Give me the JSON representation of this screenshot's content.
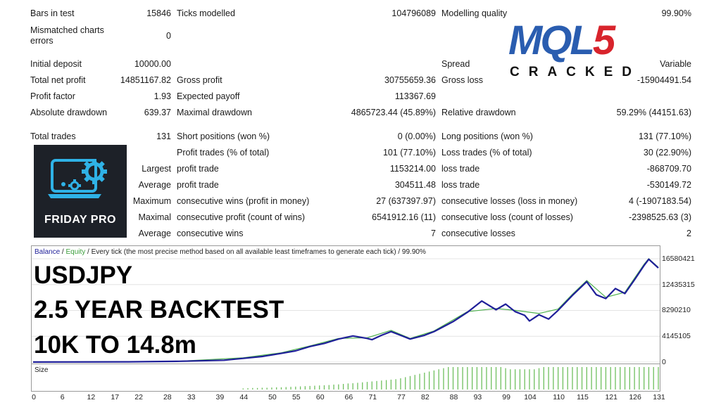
{
  "stats": {
    "bars_label": "Bars in test",
    "bars_value": "15846",
    "ticks_label": "Ticks modelled",
    "ticks_value": "104796089",
    "quality_label": "Modelling quality",
    "quality_value": "99.90%",
    "mismatch_label_1": "Mismatched charts",
    "mismatch_label_2": "errors",
    "mismatch_value": "0",
    "deposit_label": "Initial deposit",
    "deposit_value": "10000.00",
    "spread_label": "Spread",
    "spread_value": "Variable",
    "net_label": "Total net profit",
    "net_value": "14851167.82",
    "gross_profit_label": "Gross profit",
    "gross_profit_value": "30755659.36",
    "gross_loss_label": "Gross loss",
    "gross_loss_value": "-15904491.54",
    "pf_label": "Profit factor",
    "pf_value": "1.93",
    "ep_label": "Expected payoff",
    "ep_value": "113367.69",
    "abs_dd_label": "Absolute drawdown",
    "abs_dd_value": "639.37",
    "max_dd_label": "Maximal drawdown",
    "max_dd_value": "4865723.44 (45.89%)",
    "rel_dd_label": "Relative drawdown",
    "rel_dd_value": "59.29% (44151.63)",
    "trades_label": "Total trades",
    "trades_value": "131",
    "short_label": "Short positions (won %)",
    "short_value": "0 (0.00%)",
    "long_label": "Long positions (won %)",
    "long_value": "131 (77.10%)",
    "profit_trades_label": "Profit trades (% of total)",
    "profit_trades_value": "101 (77.10%)",
    "loss_trades_label": "Loss trades (% of total)",
    "loss_trades_value": "30 (22.90%)",
    "largest_prefix": "Largest",
    "largest_profit_label": "profit trade",
    "largest_profit_value": "1153214.00",
    "largest_loss_label": "loss trade",
    "largest_loss_value": "-868709.70",
    "average_prefix": "Average",
    "average_profit_label": "profit trade",
    "average_profit_value": "304511.48",
    "average_loss_label": "loss trade",
    "average_loss_value": "-530149.72",
    "maximum_prefix": "Maximum",
    "max_cons_wins_label": "consecutive wins (profit in money)",
    "max_cons_wins_value": "27 (637397.97)",
    "max_cons_losses_label": "consecutive losses (loss in money)",
    "max_cons_losses_value": "4 (-1907183.54)",
    "maximal_prefix": "Maximal",
    "maximal_profit_label": "consecutive profit (count of wins)",
    "maximal_profit_value": "6541912.16 (11)",
    "maximal_loss_label": "consecutive loss (count of losses)",
    "maximal_loss_value": "-2398525.63 (3)",
    "avg2_prefix": "Average",
    "avg_cons_wins_label": "consecutive wins",
    "avg_cons_wins_value": "7",
    "avg_cons_losses_label": "consecutive losses",
    "avg_cons_losses_value": "2"
  },
  "logos": {
    "mql_letters": "MQL",
    "mql_five": "5",
    "cracked": "CRACKED",
    "friday": "FRIDAY PRO"
  },
  "overlay": {
    "line1": "USDJPY",
    "line2": "2.5 YEAR BACKTEST",
    "line3": "10K TO 14.8m"
  },
  "chart_header": {
    "balance": "Balance",
    "sep": " / ",
    "equity": "Equity",
    "rest": " / Every tick (the most precise method based on all available least timeframes to generate each tick) / 99.90%"
  },
  "size_label": "Size",
  "chart_data": {
    "type": "line",
    "y_ticks": [
      "16580421",
      "12435315",
      "8290210",
      "4145105",
      "0"
    ],
    "y_range": [
      0,
      16580421
    ],
    "x_ticks": [
      "0",
      "6",
      "12",
      "17",
      "22",
      "28",
      "33",
      "39",
      "44",
      "50",
      "55",
      "60",
      "66",
      "71",
      "77",
      "82",
      "88",
      "93",
      "99",
      "104",
      "110",
      "115",
      "121",
      "126",
      "131"
    ],
    "x_range": [
      0,
      131
    ],
    "series": [
      {
        "name": "Balance",
        "color": "#1f1f99",
        "x": [
          0,
          20,
          30,
          40,
          44,
          48,
          52,
          55,
          58,
          61,
          64,
          67,
          70,
          71,
          73,
          75,
          77,
          79,
          82,
          84,
          88,
          91,
          94,
          97,
          99,
          101,
          103,
          104,
          106,
          108,
          110,
          113,
          116,
          118,
          120,
          122,
          124,
          126,
          128,
          129,
          131
        ],
        "values": [
          10000,
          50000,
          120000,
          300000,
          600000,
          900000,
          1400000,
          1800000,
          2500000,
          3000000,
          3700000,
          4200000,
          3800000,
          3600000,
          4300000,
          4900000,
          4300000,
          3700000,
          4300000,
          4900000,
          6500000,
          8000000,
          9800000,
          8400000,
          9300000,
          8100000,
          7500000,
          6600000,
          7600000,
          6900000,
          8300000,
          10700000,
          12900000,
          10800000,
          10200000,
          11800000,
          11000000,
          13200000,
          15500000,
          16500000,
          15100000
        ]
      },
      {
        "name": "Equity",
        "color": "#4cb04c",
        "x": [
          0,
          30,
          44,
          52,
          58,
          64,
          70,
          75,
          79,
          84,
          91,
          97,
          101,
          106,
          110,
          113,
          116,
          120,
          124,
          128,
          129,
          131
        ],
        "values": [
          10000,
          120000,
          700000,
          1500000,
          2600000,
          3800000,
          3900000,
          5100000,
          3800000,
          5000000,
          8100000,
          8600000,
          8300000,
          7800000,
          8500000,
          10900000,
          13100000,
          10400000,
          11200000,
          15700000,
          16600000,
          15200000
        ]
      }
    ],
    "size_bars": {
      "x_start": 44,
      "x_end": 131,
      "values": [
        0.05,
        0.06,
        0.07,
        0.07,
        0.08,
        0.08,
        0.09,
        0.1,
        0.1,
        0.11,
        0.12,
        0.13,
        0.14,
        0.15,
        0.16,
        0.17,
        0.18,
        0.19,
        0.2,
        0.22,
        0.23,
        0.25,
        0.27,
        0.28,
        0.3,
        0.32,
        0.34,
        0.36,
        0.38,
        0.4,
        0.42,
        0.44,
        0.46,
        0.5,
        0.55,
        0.6,
        0.65,
        0.7,
        0.75,
        0.8,
        0.85,
        0.9,
        0.95,
        1,
        1,
        1,
        1,
        1,
        1,
        1,
        1,
        1,
        1,
        1,
        1,
        0.95,
        0.9,
        0.9,
        0.9,
        0.9,
        0.9,
        0.9,
        0.95,
        1,
        1,
        1,
        1,
        1,
        1,
        1,
        1,
        1,
        1,
        1,
        1,
        1,
        1,
        1,
        1,
        1,
        1,
        1,
        1,
        1,
        1,
        1,
        1,
        1
      ]
    }
  }
}
